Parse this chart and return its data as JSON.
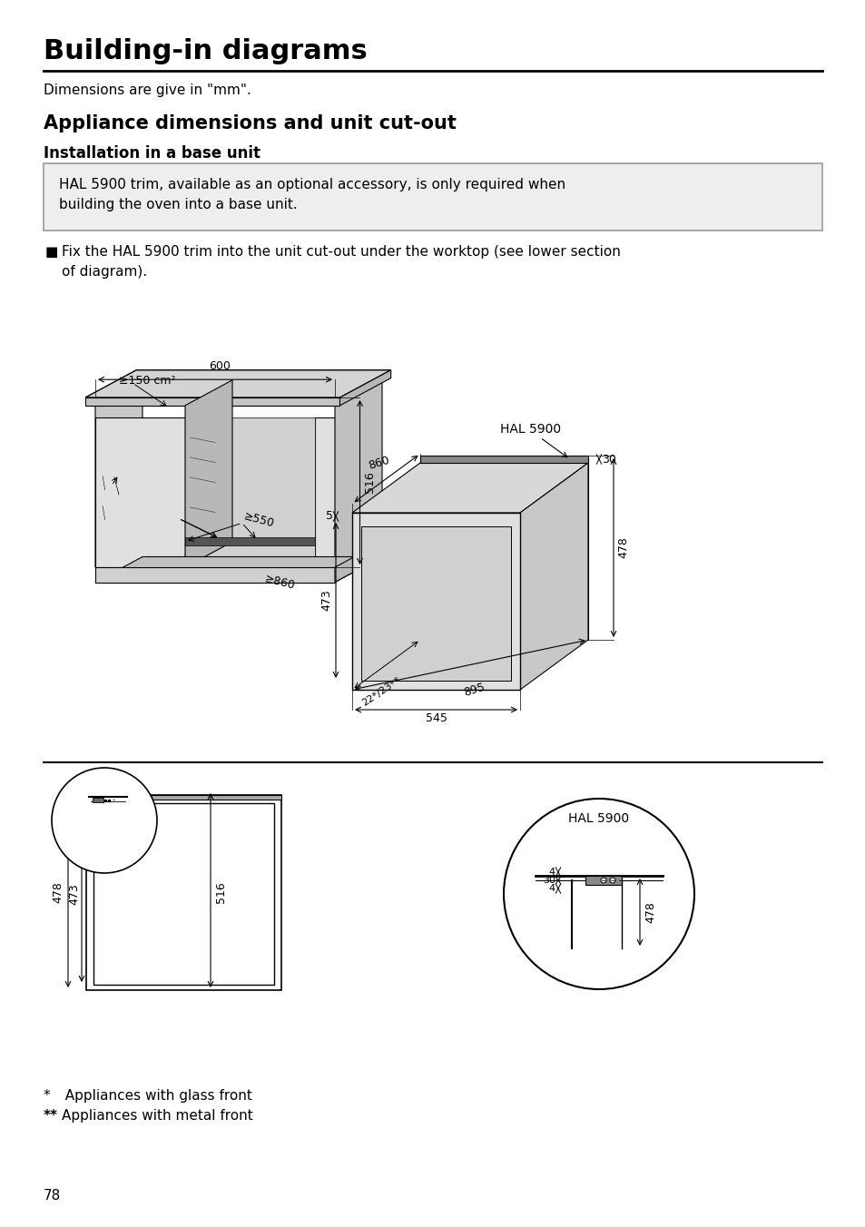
{
  "title": "Building-in diagrams",
  "subtitle": "Dimensions are give in \"mm\".",
  "section1": "Appliance dimensions and unit cut-out",
  "section2": "Installation in a base unit",
  "notice_text1": "HAL 5900 trim, available as an optional accessory, is only required when",
  "notice_text2": "building the oven into a base unit.",
  "bullet_text1": "Fix the HAL 5900 trim into the unit cut-out under the worktop (see lower section",
  "bullet_text2": "of diagram).",
  "footnote1": "*   Appliances with glass front",
  "footnote2": "**  Appliances with metal front",
  "page_num": "78",
  "bg_color": "#ffffff"
}
